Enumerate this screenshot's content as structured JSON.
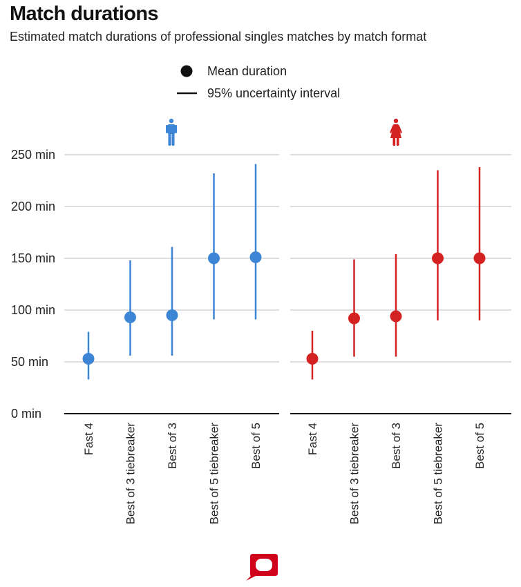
{
  "title": "Match durations",
  "subtitle": "Estimated match durations of professional singles matches by match format",
  "legend": {
    "mean_label": "Mean duration",
    "interval_label": "95% uncertainty interval"
  },
  "colors": {
    "men": "#3d86d6",
    "women": "#d42222",
    "axis": "#111111",
    "grid": "#bdbdbd",
    "logo": "#d0021b"
  },
  "icons": {
    "men_panel": "man-icon",
    "women_panel": "woman-icon",
    "brand": "speech-bubble-logo-icon"
  },
  "chart_data": [
    {
      "type": "scatter",
      "name": "Men",
      "ylabel_unit": "min",
      "ylim": [
        0,
        250
      ],
      "yticks": [
        0,
        50,
        100,
        150,
        200,
        250
      ],
      "ytick_labels": [
        "0 min",
        "50 min",
        "100 min",
        "150 min",
        "200 min",
        "250 min"
      ],
      "grid": true,
      "categories": [
        "Fast 4",
        "Best of 3 tiebreaker",
        "Best of 3",
        "Best of 5 tiebreaker",
        "Best of 5"
      ],
      "mean": [
        53,
        93,
        95,
        150,
        151
      ],
      "lower": [
        33,
        56,
        56,
        91,
        91
      ],
      "upper": [
        79,
        148,
        161,
        232,
        241
      ]
    },
    {
      "type": "scatter",
      "name": "Women",
      "ylabel_unit": "min",
      "ylim": [
        0,
        250
      ],
      "yticks": [
        0,
        50,
        100,
        150,
        200,
        250
      ],
      "grid": true,
      "categories": [
        "Fast 4",
        "Best of 3 tiebreaker",
        "Best of 3",
        "Best of 5 tiebreaker",
        "Best of 5"
      ],
      "mean": [
        53,
        92,
        94,
        150,
        150
      ],
      "lower": [
        33,
        55,
        55,
        90,
        90
      ],
      "upper": [
        80,
        149,
        154,
        235,
        238
      ]
    }
  ]
}
